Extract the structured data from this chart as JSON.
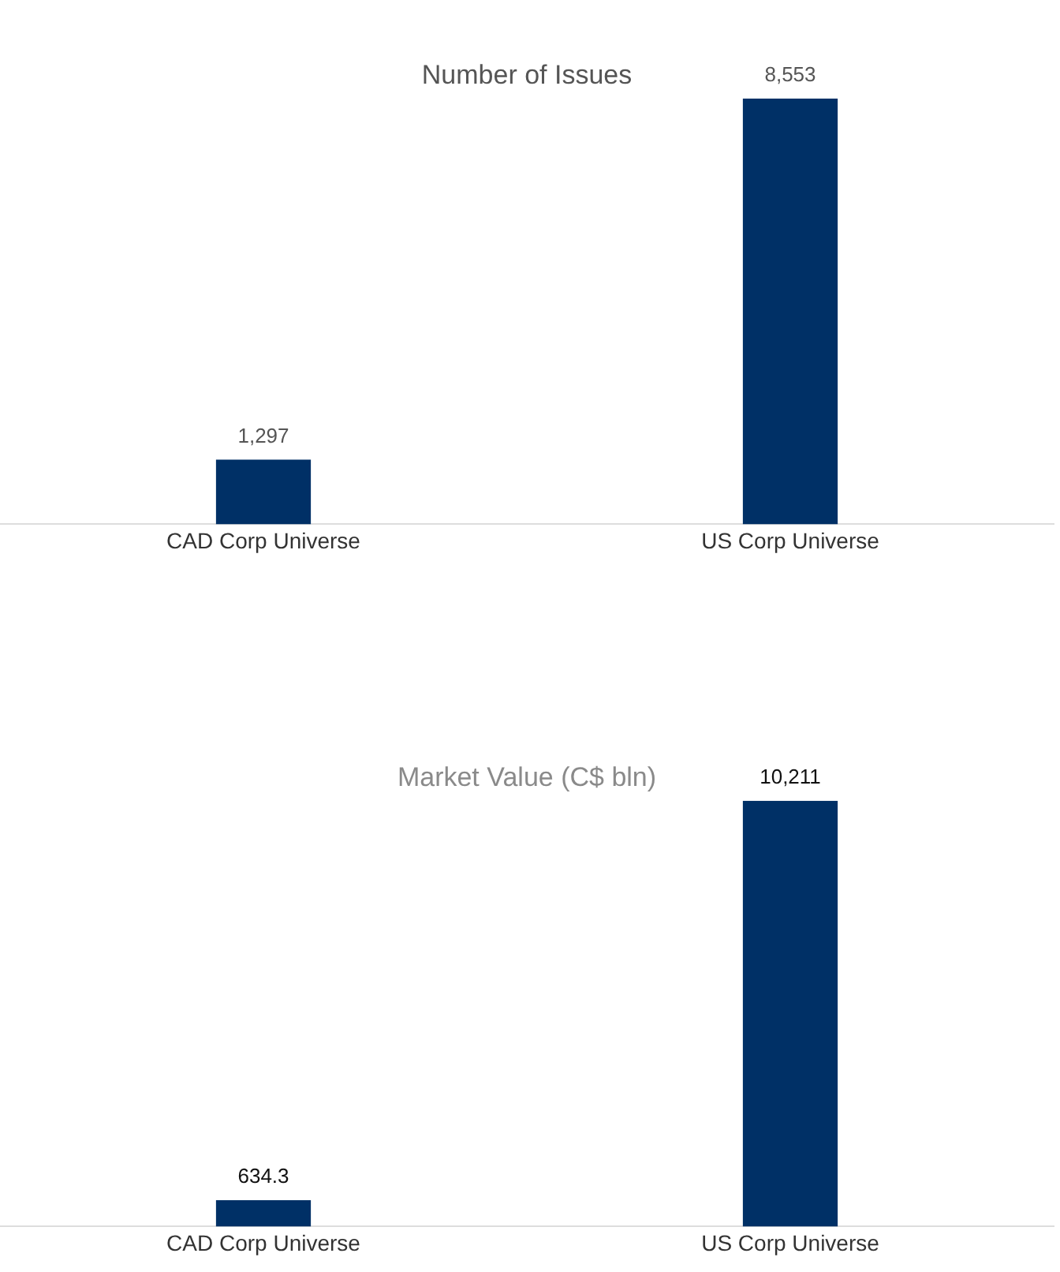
{
  "chart_data": [
    {
      "type": "bar",
      "title": "Number of Issues",
      "categories": [
        "CAD Corp Universe",
        "US Corp Universe"
      ],
      "values": [
        1297,
        8553
      ],
      "value_labels": [
        "1,297",
        "8,553"
      ],
      "color": "#003066",
      "grid": false,
      "legend": false
    },
    {
      "type": "bar",
      "title": "Market Value (C$ bln)",
      "categories": [
        "CAD Corp Universe",
        "US Corp Universe"
      ],
      "values": [
        634.3,
        10211
      ],
      "value_labels": [
        "634.3",
        "10,211"
      ],
      "color": "#003066",
      "grid": false,
      "legend": false
    }
  ]
}
